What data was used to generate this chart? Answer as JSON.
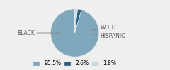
{
  "slices": [
    95.5,
    2.6,
    1.8
  ],
  "labels": [
    "BLACK",
    "WHITE",
    "HISPANIC"
  ],
  "colors": [
    "#7FA8BC",
    "#2B5F80",
    "#C8DCE8"
  ],
  "legend_labels": [
    "95.5%",
    "2.6%",
    "1.8%"
  ],
  "startangle": 90,
  "bg_color": "#EFEFEF"
}
